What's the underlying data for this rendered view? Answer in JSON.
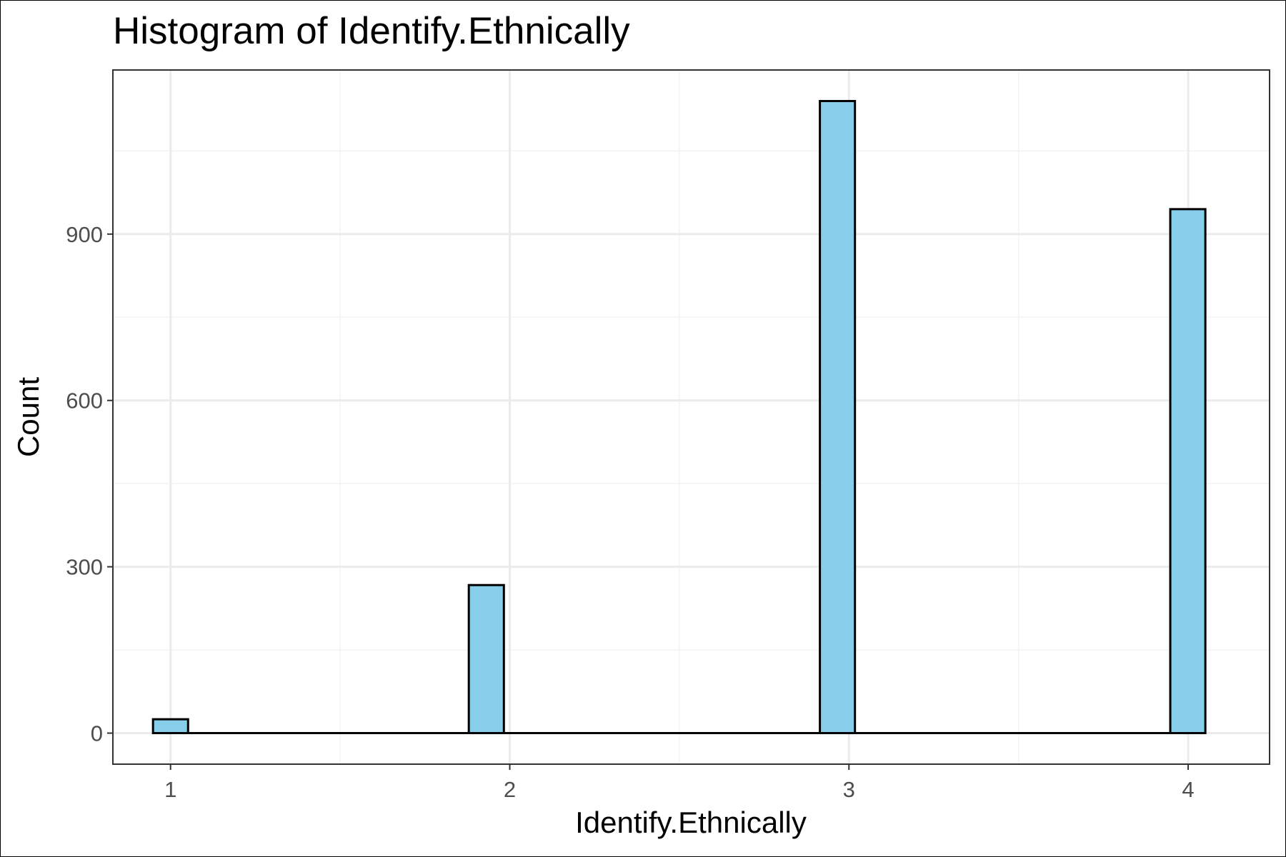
{
  "chart_data": {
    "type": "bar",
    "title": "Histogram of Identify.Ethnically",
    "xlabel": "Identify.Ethnically",
    "ylabel": "Count",
    "x_ticks": [
      "1",
      "2",
      "3",
      "4"
    ],
    "y_ticks": [
      "0",
      "300",
      "600",
      "900"
    ],
    "xlim": [
      0.83,
      4.24
    ],
    "ylim": [
      -56,
      1196
    ],
    "bins": [
      {
        "x": 1.0,
        "count": 25
      },
      {
        "x": 1.931,
        "count": 267
      },
      {
        "x": 2.966,
        "count": 1140
      },
      {
        "x": 3.999,
        "count": 945
      }
    ],
    "bin_width": 0.1034,
    "baseline_range": [
      0.948,
      4.051
    ],
    "grid": true,
    "legend": "none",
    "colors": {
      "bar_fill": "#87CEEB",
      "bar_stroke": "#000000",
      "grid_major": "#EBEBEB",
      "grid_minor": "#F3F3F3",
      "tick_label": "#4D4D4D",
      "panel_border": "#333333"
    }
  }
}
